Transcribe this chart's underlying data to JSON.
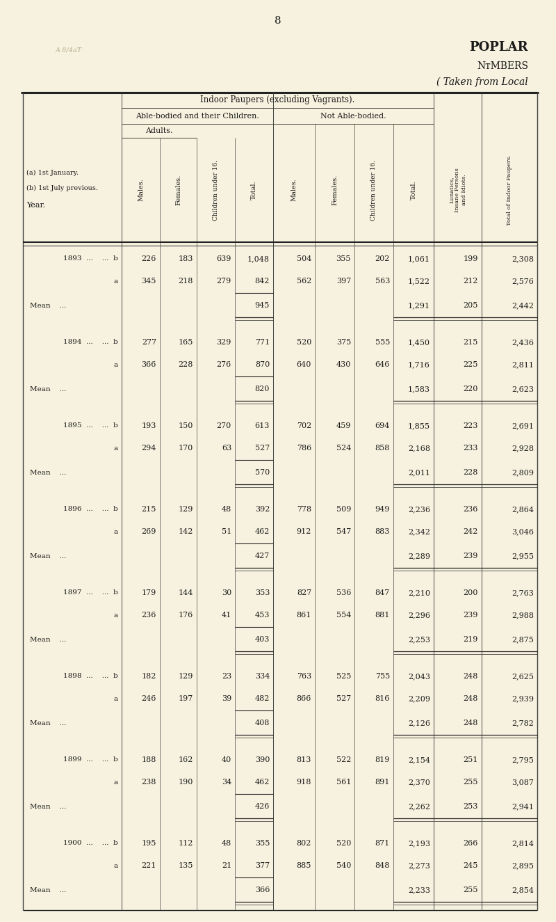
{
  "page_number": "8",
  "title1": "POPLAR",
  "title2": "NᴛMBERS",
  "title3": "( Taken from Local",
  "bg_color": "#f7f2df",
  "text_color": "#1a1a1a",
  "header_main": "Indoor Paupers (excluding Vagrants).",
  "header_ab": "Able-bodied and their Children.",
  "header_nab": "Not Able-bodied.",
  "header_adults": "Adults.",
  "year_label_a": "(a) 1st January.",
  "year_label_b": "(b) 1st July previous.",
  "year_label_year": "Year.",
  "rows": [
    {
      "year": 1893,
      "type": "b",
      "ab_males": "226",
      "ab_females": "183",
      "ab_children": "639",
      "ab_total": "1,048",
      "nab_males": "504",
      "nab_females": "355",
      "nab_children": "202",
      "nab_total": "1,061",
      "lunatics": "199",
      "grand_total": "2,308"
    },
    {
      "year": 1893,
      "type": "a",
      "ab_males": "345",
      "ab_females": "218",
      "ab_children": "279",
      "ab_total": "842",
      "nab_males": "562",
      "nab_females": "397",
      "nab_children": "563",
      "nab_total": "1,522",
      "lunatics": "212",
      "grand_total": "2,576"
    },
    {
      "year": 1893,
      "type": "mean",
      "ab_total": "945",
      "nab_total": "1,291",
      "lunatics": "205",
      "grand_total": "2,442"
    },
    {
      "year": 1894,
      "type": "b",
      "ab_males": "277",
      "ab_females": "165",
      "ab_children": "329",
      "ab_total": "771",
      "nab_males": "520",
      "nab_females": "375",
      "nab_children": "555",
      "nab_total": "1,450",
      "lunatics": "215",
      "grand_total": "2,436"
    },
    {
      "year": 1894,
      "type": "a",
      "ab_males": "366",
      "ab_females": "228",
      "ab_children": "276",
      "ab_total": "870",
      "nab_males": "640",
      "nab_females": "430",
      "nab_children": "646",
      "nab_total": "1,716",
      "lunatics": "225",
      "grand_total": "2,811"
    },
    {
      "year": 1894,
      "type": "mean",
      "ab_total": "820",
      "nab_total": "1,583",
      "lunatics": "220",
      "grand_total": "2,623"
    },
    {
      "year": 1895,
      "type": "b",
      "ab_males": "193",
      "ab_females": "150",
      "ab_children": "270",
      "ab_total": "613",
      "nab_males": "702",
      "nab_females": "459",
      "nab_children": "694",
      "nab_total": "1,855",
      "lunatics": "223",
      "grand_total": "2,691"
    },
    {
      "year": 1895,
      "type": "a",
      "ab_males": "294",
      "ab_females": "170",
      "ab_children": "63",
      "ab_total": "527",
      "nab_males": "786",
      "nab_females": "524",
      "nab_children": "858",
      "nab_total": "2,168",
      "lunatics": "233",
      "grand_total": "2,928"
    },
    {
      "year": 1895,
      "type": "mean",
      "ab_total": "570",
      "nab_total": "2,011",
      "lunatics": "228",
      "grand_total": "2,809"
    },
    {
      "year": 1896,
      "type": "b",
      "ab_males": "215",
      "ab_females": "129",
      "ab_children": "48",
      "ab_total": "392",
      "nab_males": "778",
      "nab_females": "509",
      "nab_children": "949",
      "nab_total": "2,236",
      "lunatics": "236",
      "grand_total": "2,864"
    },
    {
      "year": 1896,
      "type": "a",
      "ab_males": "269",
      "ab_females": "142",
      "ab_children": "51",
      "ab_total": "462",
      "nab_males": "912",
      "nab_females": "547",
      "nab_children": "883",
      "nab_total": "2,342",
      "lunatics": "242",
      "grand_total": "3,046"
    },
    {
      "year": 1896,
      "type": "mean",
      "ab_total": "427",
      "nab_total": "2,289",
      "lunatics": "239",
      "grand_total": "2,955"
    },
    {
      "year": 1897,
      "type": "b",
      "ab_males": "179",
      "ab_females": "144",
      "ab_children": "30",
      "ab_total": "353",
      "nab_males": "827",
      "nab_females": "536",
      "nab_children": "847",
      "nab_total": "2,210",
      "lunatics": "200",
      "grand_total": "2,763"
    },
    {
      "year": 1897,
      "type": "a",
      "ab_males": "236",
      "ab_females": "176",
      "ab_children": "41",
      "ab_total": "453",
      "nab_males": "861",
      "nab_females": "554",
      "nab_children": "881",
      "nab_total": "2,296",
      "lunatics": "239",
      "grand_total": "2,988"
    },
    {
      "year": 1897,
      "type": "mean",
      "ab_total": "403",
      "nab_total": "2,253",
      "lunatics": "219",
      "grand_total": "2,875"
    },
    {
      "year": 1898,
      "type": "b",
      "ab_males": "182",
      "ab_females": "129",
      "ab_children": "23",
      "ab_total": "334",
      "nab_males": "763",
      "nab_females": "525",
      "nab_children": "755",
      "nab_total": "2,043",
      "lunatics": "248",
      "grand_total": "2,625"
    },
    {
      "year": 1898,
      "type": "a",
      "ab_males": "246",
      "ab_females": "197",
      "ab_children": "39",
      "ab_total": "482",
      "nab_males": "866",
      "nab_females": "527",
      "nab_children": "816",
      "nab_total": "2,209",
      "lunatics": "248",
      "grand_total": "2,939"
    },
    {
      "year": 1898,
      "type": "mean",
      "ab_total": "408",
      "nab_total": "2,126",
      "lunatics": "248",
      "grand_total": "2,782"
    },
    {
      "year": 1899,
      "type": "b",
      "ab_males": "188",
      "ab_females": "162",
      "ab_children": "40",
      "ab_total": "390",
      "nab_males": "813",
      "nab_females": "522",
      "nab_children": "819",
      "nab_total": "2,154",
      "lunatics": "251",
      "grand_total": "2,795"
    },
    {
      "year": 1899,
      "type": "a",
      "ab_males": "238",
      "ab_females": "190",
      "ab_children": "34",
      "ab_total": "462",
      "nab_males": "918",
      "nab_females": "561",
      "nab_children": "891",
      "nab_total": "2,370",
      "lunatics": "255",
      "grand_total": "3,087"
    },
    {
      "year": 1899,
      "type": "mean",
      "ab_total": "426",
      "nab_total": "2,262",
      "lunatics": "253",
      "grand_total": "2,941"
    },
    {
      "year": 1900,
      "type": "b",
      "ab_males": "195",
      "ab_females": "112",
      "ab_children": "48",
      "ab_total": "355",
      "nab_males": "802",
      "nab_females": "520",
      "nab_children": "871",
      "nab_total": "2,193",
      "lunatics": "266",
      "grand_total": "2,814"
    },
    {
      "year": 1900,
      "type": "a",
      "ab_males": "221",
      "ab_females": "135",
      "ab_children": "21",
      "ab_total": "377",
      "nab_males": "885",
      "nab_females": "540",
      "nab_children": "848",
      "nab_total": "2,273",
      "lunatics": "245",
      "grand_total": "2,895"
    },
    {
      "year": 1900,
      "type": "mean",
      "ab_total": "366",
      "nab_total": "2,233",
      "lunatics": "255",
      "grand_total": "2,854"
    }
  ]
}
